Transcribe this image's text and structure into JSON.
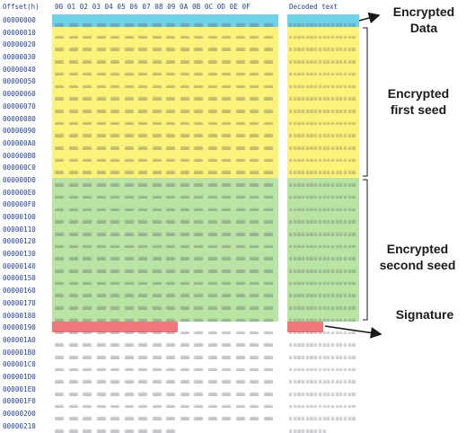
{
  "header": {
    "offset_label": "Offset(h)",
    "byte_columns": [
      "00",
      "01",
      "02",
      "03",
      "04",
      "05",
      "06",
      "07",
      "08",
      "09",
      "0A",
      "0B",
      "0C",
      "0D",
      "0E",
      "0F"
    ],
    "decoded_label": "Decoded text"
  },
  "offsets": [
    "00000000",
    "00000010",
    "00000020",
    "00000030",
    "00000040",
    "00000050",
    "00000060",
    "00000070",
    "00000080",
    "00000090",
    "000000A0",
    "000000B0",
    "000000C0",
    "000000D0",
    "000000E0",
    "000000F0",
    "00000100",
    "00000110",
    "00000120",
    "00000130",
    "00000140",
    "00000150",
    "00000160",
    "00000170",
    "00000180",
    "00000190",
    "000001A0",
    "000001B0",
    "000001C0",
    "000001D0",
    "000001E0",
    "000001F0",
    "00000200",
    "00000210"
  ],
  "annotations": {
    "encrypted_data": "Encrypted\nData",
    "encrypted_first_seed": "Encrypted\nfirst seed",
    "encrypted_second_seed": "Encrypted\nsecond seed",
    "signature": "Signature"
  },
  "colors": {
    "data": "#6fd3e8",
    "first_seed": "#fbf37a",
    "second_seed": "#b9e4a4",
    "signature": "#f0777a",
    "offset_text": "#1f3f9f"
  }
}
